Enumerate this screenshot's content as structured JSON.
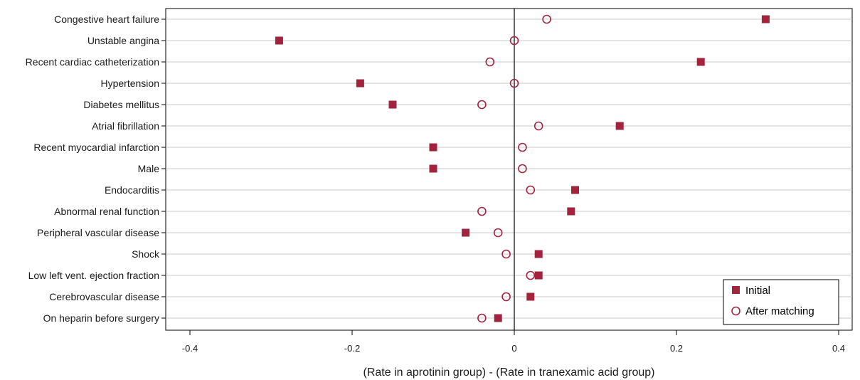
{
  "chart_data": {
    "type": "scatter",
    "xlabel": "(Rate in aprotinin group) - (Rate in tranexamic acid group)",
    "ylabel": "",
    "xlim": [
      -0.43,
      0.43
    ],
    "xticks": [
      "-0.4",
      "-0.2",
      "0",
      "0.2",
      "0.4"
    ],
    "grid": "horizontal",
    "legend_position": "bottom-right",
    "categories": [
      "Congestive heart failure",
      "Unstable angina",
      "Recent cardiac catheterization",
      "Hypertension",
      "Diabetes mellitus",
      "Atrial fibrillation",
      "Recent myocardial infarction",
      "Male",
      "Endocarditis",
      "Abnormal renal function",
      "Peripheral vascular disease",
      "Shock",
      "Low left vent. ejection fraction",
      "Cerebrovascular disease",
      "On heparin before surgery"
    ],
    "series": [
      {
        "name": "Initial",
        "marker": "filled-square",
        "color": "#a3223c",
        "values": [
          0.31,
          -0.29,
          0.23,
          -0.19,
          -0.15,
          0.13,
          -0.1,
          -0.1,
          0.075,
          0.07,
          -0.06,
          0.03,
          0.03,
          0.02,
          -0.02
        ]
      },
      {
        "name": "After matching",
        "marker": "hollow-circle",
        "color": "#a3223c",
        "values": [
          0.04,
          0.0,
          -0.03,
          0.0,
          -0.04,
          0.03,
          0.01,
          0.01,
          0.02,
          -0.04,
          -0.02,
          -0.01,
          0.02,
          -0.01,
          -0.04
        ]
      }
    ]
  }
}
